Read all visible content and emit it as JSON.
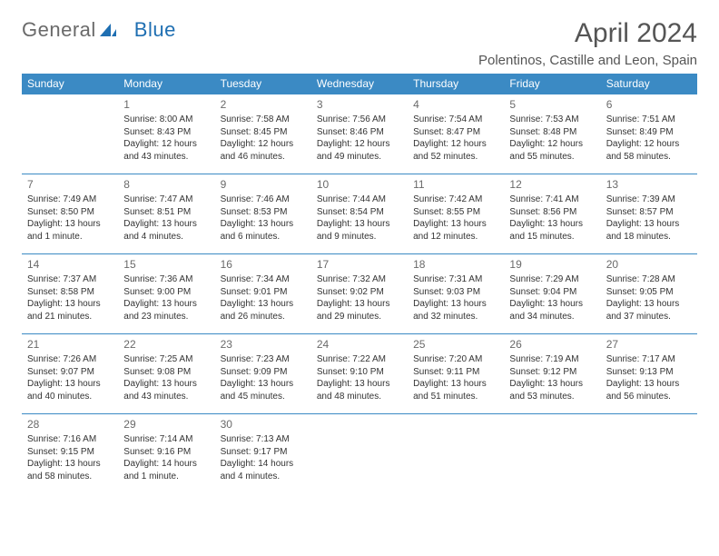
{
  "logo": {
    "part1": "General",
    "part2": "Blue"
  },
  "title": "April 2024",
  "location": "Polentinos, Castille and Leon, Spain",
  "colors": {
    "header_bg": "#3b8ac4",
    "header_text": "#ffffff",
    "row_border": "#3b8ac4",
    "logo_gray": "#6a6a6a",
    "logo_blue": "#1f6fb2",
    "body_text": "#333333",
    "title_text": "#555555",
    "page_bg": "#ffffff"
  },
  "typography": {
    "title_fontsize": 30,
    "location_fontsize": 15,
    "header_cell_fontsize": 12,
    "daynum_fontsize": 12,
    "body_fontsize": 10
  },
  "weekdays": [
    "Sunday",
    "Monday",
    "Tuesday",
    "Wednesday",
    "Thursday",
    "Friday",
    "Saturday"
  ],
  "weeks": [
    [
      null,
      {
        "d": "1",
        "sr": "8:00 AM",
        "ss": "8:43 PM",
        "dl": "12 hours and 43 minutes."
      },
      {
        "d": "2",
        "sr": "7:58 AM",
        "ss": "8:45 PM",
        "dl": "12 hours and 46 minutes."
      },
      {
        "d": "3",
        "sr": "7:56 AM",
        "ss": "8:46 PM",
        "dl": "12 hours and 49 minutes."
      },
      {
        "d": "4",
        "sr": "7:54 AM",
        "ss": "8:47 PM",
        "dl": "12 hours and 52 minutes."
      },
      {
        "d": "5",
        "sr": "7:53 AM",
        "ss": "8:48 PM",
        "dl": "12 hours and 55 minutes."
      },
      {
        "d": "6",
        "sr": "7:51 AM",
        "ss": "8:49 PM",
        "dl": "12 hours and 58 minutes."
      }
    ],
    [
      {
        "d": "7",
        "sr": "7:49 AM",
        "ss": "8:50 PM",
        "dl": "13 hours and 1 minute."
      },
      {
        "d": "8",
        "sr": "7:47 AM",
        "ss": "8:51 PM",
        "dl": "13 hours and 4 minutes."
      },
      {
        "d": "9",
        "sr": "7:46 AM",
        "ss": "8:53 PM",
        "dl": "13 hours and 6 minutes."
      },
      {
        "d": "10",
        "sr": "7:44 AM",
        "ss": "8:54 PM",
        "dl": "13 hours and 9 minutes."
      },
      {
        "d": "11",
        "sr": "7:42 AM",
        "ss": "8:55 PM",
        "dl": "13 hours and 12 minutes."
      },
      {
        "d": "12",
        "sr": "7:41 AM",
        "ss": "8:56 PM",
        "dl": "13 hours and 15 minutes."
      },
      {
        "d": "13",
        "sr": "7:39 AM",
        "ss": "8:57 PM",
        "dl": "13 hours and 18 minutes."
      }
    ],
    [
      {
        "d": "14",
        "sr": "7:37 AM",
        "ss": "8:58 PM",
        "dl": "13 hours and 21 minutes."
      },
      {
        "d": "15",
        "sr": "7:36 AM",
        "ss": "9:00 PM",
        "dl": "13 hours and 23 minutes."
      },
      {
        "d": "16",
        "sr": "7:34 AM",
        "ss": "9:01 PM",
        "dl": "13 hours and 26 minutes."
      },
      {
        "d": "17",
        "sr": "7:32 AM",
        "ss": "9:02 PM",
        "dl": "13 hours and 29 minutes."
      },
      {
        "d": "18",
        "sr": "7:31 AM",
        "ss": "9:03 PM",
        "dl": "13 hours and 32 minutes."
      },
      {
        "d": "19",
        "sr": "7:29 AM",
        "ss": "9:04 PM",
        "dl": "13 hours and 34 minutes."
      },
      {
        "d": "20",
        "sr": "7:28 AM",
        "ss": "9:05 PM",
        "dl": "13 hours and 37 minutes."
      }
    ],
    [
      {
        "d": "21",
        "sr": "7:26 AM",
        "ss": "9:07 PM",
        "dl": "13 hours and 40 minutes."
      },
      {
        "d": "22",
        "sr": "7:25 AM",
        "ss": "9:08 PM",
        "dl": "13 hours and 43 minutes."
      },
      {
        "d": "23",
        "sr": "7:23 AM",
        "ss": "9:09 PM",
        "dl": "13 hours and 45 minutes."
      },
      {
        "d": "24",
        "sr": "7:22 AM",
        "ss": "9:10 PM",
        "dl": "13 hours and 48 minutes."
      },
      {
        "d": "25",
        "sr": "7:20 AM",
        "ss": "9:11 PM",
        "dl": "13 hours and 51 minutes."
      },
      {
        "d": "26",
        "sr": "7:19 AM",
        "ss": "9:12 PM",
        "dl": "13 hours and 53 minutes."
      },
      {
        "d": "27",
        "sr": "7:17 AM",
        "ss": "9:13 PM",
        "dl": "13 hours and 56 minutes."
      }
    ],
    [
      {
        "d": "28",
        "sr": "7:16 AM",
        "ss": "9:15 PM",
        "dl": "13 hours and 58 minutes."
      },
      {
        "d": "29",
        "sr": "7:14 AM",
        "ss": "9:16 PM",
        "dl": "14 hours and 1 minute."
      },
      {
        "d": "30",
        "sr": "7:13 AM",
        "ss": "9:17 PM",
        "dl": "14 hours and 4 minutes."
      },
      null,
      null,
      null,
      null
    ]
  ],
  "labels": {
    "sunrise": "Sunrise: ",
    "sunset": "Sunset: ",
    "daylight": "Daylight: "
  }
}
